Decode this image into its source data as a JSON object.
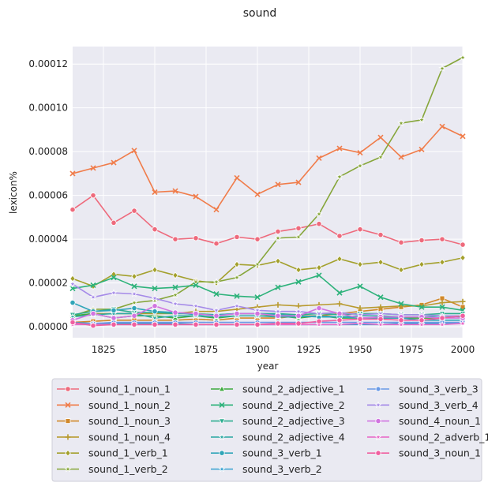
{
  "chart_data": {
    "type": "line",
    "title": "sound",
    "xlabel": "year",
    "ylabel": "lexicon%",
    "xlim": [
      1810,
      2000
    ],
    "ylim": [
      -5e-06,
      0.000128
    ],
    "xticks": [
      1825,
      1850,
      1875,
      1900,
      1925,
      1950,
      1975,
      2000
    ],
    "yticks": [
      0.0,
      2e-05,
      4e-05,
      6e-05,
      8e-05,
      0.0001,
      0.00012
    ],
    "ytick_labels": [
      "0.00000",
      "0.00002",
      "0.00004",
      "0.00006",
      "0.00008",
      "0.00010",
      "0.00012"
    ],
    "grid": true,
    "legend_position": "bottom",
    "x": [
      1810,
      1820,
      1830,
      1840,
      1850,
      1860,
      1870,
      1880,
      1890,
      1900,
      1910,
      1920,
      1930,
      1940,
      1950,
      1960,
      1970,
      1980,
      1990,
      2000
    ],
    "series": [
      {
        "name": "sound_1_noun_1",
        "color": "#ee6a7c",
        "marker": "circle",
        "values": [
          5.35e-05,
          6e-05,
          4.75e-05,
          5.3e-05,
          4.45e-05,
          4e-05,
          4.05e-05,
          3.8e-05,
          4.1e-05,
          4e-05,
          4.35e-05,
          4.5e-05,
          4.7e-05,
          4.15e-05,
          4.45e-05,
          4.2e-05,
          3.85e-05,
          3.95e-05,
          4e-05,
          3.75e-05
        ]
      },
      {
        "name": "sound_1_noun_2",
        "color": "#f07c4a",
        "marker": "x",
        "values": [
          7e-05,
          7.25e-05,
          7.5e-05,
          8.05e-05,
          6.15e-05,
          6.2e-05,
          5.95e-05,
          5.35e-05,
          6.8e-05,
          6.05e-05,
          6.5e-05,
          6.6e-05,
          7.7e-05,
          8.15e-05,
          7.95e-05,
          8.65e-05,
          7.75e-05,
          8.1e-05,
          9.15e-05,
          8.7e-05
        ]
      },
      {
        "name": "sound_1_noun_3",
        "color": "#d1882a",
        "marker": "square",
        "values": [
          2e-06,
          2.5e-06,
          3e-06,
          3e-06,
          3e-06,
          3e-06,
          3.5e-06,
          3e-06,
          4e-06,
          4e-06,
          4e-06,
          5e-06,
          5e-06,
          6e-06,
          7e-06,
          8e-06,
          9e-06,
          1e-05,
          1.3e-05,
          9e-06
        ]
      },
      {
        "name": "sound_1_noun_4",
        "color": "#b89a2e",
        "marker": "plus",
        "values": [
          5e-06,
          6e-06,
          6e-06,
          6e-06,
          6e-06,
          6e-06,
          7e-06,
          7e-06,
          8e-06,
          9e-06,
          1e-05,
          9.5e-06,
          1e-05,
          1.05e-05,
          8.5e-06,
          9e-06,
          9.5e-06,
          9.5e-06,
          1.1e-05,
          1.15e-05
        ]
      },
      {
        "name": "sound_1_verb_1",
        "color": "#a3a02d",
        "marker": "diamond",
        "values": [
          2.2e-05,
          1.85e-05,
          2.4e-05,
          2.3e-05,
          2.6e-05,
          2.35e-05,
          2.1e-05,
          2e-05,
          2.85e-05,
          2.8e-05,
          3e-05,
          2.6e-05,
          2.7e-05,
          3.1e-05,
          2.85e-05,
          2.95e-05,
          2.6e-05,
          2.85e-05,
          2.95e-05,
          3.15e-05
        ]
      },
      {
        "name": "sound_1_verb_2",
        "color": "#86a63a",
        "marker": "star",
        "values": [
          5e-06,
          8e-06,
          8e-06,
          1.1e-05,
          1.2e-05,
          1.45e-05,
          2.05e-05,
          2.05e-05,
          2.25e-05,
          2.85e-05,
          4.05e-05,
          4.1e-05,
          5.15e-05,
          6.85e-05,
          7.35e-05,
          7.75e-05,
          9.3e-05,
          9.45e-05,
          0.000118,
          0.000123
        ]
      },
      {
        "name": "sound_2_adjective_1",
        "color": "#3daa3e",
        "marker": "triangle",
        "values": [
          5e-06,
          6e-06,
          4e-06,
          5e-06,
          5e-06,
          4e-06,
          5e-06,
          4e-06,
          5e-06,
          5e-06,
          5e-06,
          4e-06,
          5e-06,
          4e-06,
          4e-06,
          4e-06,
          4e-06,
          4e-06,
          4e-06,
          5e-06
        ]
      },
      {
        "name": "sound_2_adjective_2",
        "color": "#2db27a",
        "marker": "x",
        "values": [
          1.75e-05,
          1.9e-05,
          2.25e-05,
          1.85e-05,
          1.75e-05,
          1.8e-05,
          1.9e-05,
          1.5e-05,
          1.4e-05,
          1.35e-05,
          1.8e-05,
          2.05e-05,
          2.35e-05,
          1.55e-05,
          1.85e-05,
          1.35e-05,
          1.05e-05,
          9e-06,
          9e-06,
          7.5e-06
        ]
      },
      {
        "name": "sound_2_adjective_3",
        "color": "#2eae90",
        "marker": "triangle-down",
        "values": [
          5.5e-06,
          7e-06,
          8e-06,
          6.5e-06,
          6.5e-06,
          6e-06,
          6e-06,
          5.5e-06,
          6e-06,
          6e-06,
          6e-06,
          5.5e-06,
          6e-06,
          5.5e-06,
          6e-06,
          6e-06,
          5.5e-06,
          5.5e-06,
          6e-06,
          6e-06
        ]
      },
      {
        "name": "sound_2_adjective_4",
        "color": "#30aaa5",
        "marker": "star",
        "values": [
          4.5e-06,
          5.5e-06,
          6e-06,
          6e-06,
          4e-06,
          5e-06,
          5e-06,
          4.5e-06,
          5e-06,
          5e-06,
          4.5e-06,
          4.5e-06,
          5e-06,
          4.5e-06,
          5e-06,
          5e-06,
          4.5e-06,
          4.5e-06,
          5e-06,
          4.5e-06
        ]
      },
      {
        "name": "sound_3_verb_1",
        "color": "#30a5b8",
        "marker": "circle",
        "values": [
          1.1e-05,
          7e-06,
          7.5e-06,
          8.5e-06,
          7e-06,
          6.5e-06,
          5.5e-06,
          5.5e-06,
          6e-06,
          6e-06,
          5.5e-06,
          5e-06,
          4.5e-06,
          4.5e-06,
          4e-06,
          4e-06,
          4e-06,
          3e-06,
          3e-06,
          3e-06
        ]
      },
      {
        "name": "sound_3_verb_2",
        "color": "#36a0d0",
        "marker": "star",
        "values": [
          2e-06,
          1.5e-06,
          1.5e-06,
          1.5e-06,
          1.5e-06,
          1.5e-06,
          1e-06,
          1e-06,
          1e-06,
          1e-06,
          1e-06,
          1e-06,
          1e-06,
          1e-06,
          1e-06,
          1e-06,
          1.5e-06,
          1.5e-06,
          1.5e-06,
          1.5e-06
        ]
      },
      {
        "name": "sound_3_verb_3",
        "color": "#6a9ae6",
        "marker": "hexagon",
        "values": [
          1.5e-06,
          1.5e-06,
          2e-06,
          2e-06,
          2e-06,
          2e-06,
          2e-06,
          2e-06,
          2e-06,
          2e-06,
          2e-06,
          2e-06,
          2e-06,
          2e-06,
          2e-06,
          2e-06,
          2e-06,
          2e-06,
          2e-06,
          2e-06
        ]
      },
      {
        "name": "sound_3_verb_4",
        "color": "#a58ae8",
        "marker": "star",
        "values": [
          1.95e-05,
          1.35e-05,
          1.55e-05,
          1.5e-05,
          1.3e-05,
          1.05e-05,
          9.5e-06,
          7.5e-06,
          9.5e-06,
          7.5e-06,
          7e-06,
          7e-06,
          6e-06,
          6.5e-06,
          5.5e-06,
          6e-06,
          5.5e-06,
          5.5e-06,
          5e-06,
          5e-06
        ]
      },
      {
        "name": "sound_4_noun_1",
        "color": "#d174e0",
        "marker": "circle",
        "values": [
          3e-06,
          6e-06,
          4e-06,
          5e-06,
          9.5e-06,
          6.5e-06,
          6e-06,
          5e-06,
          6e-06,
          6e-06,
          5e-06,
          5e-06,
          8.5e-06,
          6e-06,
          4e-06,
          4.5e-06,
          4.5e-06,
          4.5e-06,
          4e-06,
          4e-06
        ]
      },
      {
        "name": "sound_2_adverb_1",
        "color": "#e86ac8",
        "marker": "star",
        "values": [
          1e-06,
          1e-06,
          1e-06,
          1e-06,
          1e-06,
          1e-06,
          1e-06,
          1e-06,
          1e-06,
          1e-06,
          1e-06,
          1e-06,
          1e-06,
          1e-06,
          1.5e-06,
          1e-06,
          1e-06,
          1e-06,
          1e-06,
          1.5e-06
        ]
      },
      {
        "name": "sound_3_noun_1",
        "color": "#f05fa0",
        "marker": "circle",
        "values": [
          2e-06,
          5e-07,
          1e-06,
          1e-06,
          1e-06,
          1e-06,
          1e-06,
          1e-06,
          1e-06,
          1e-06,
          1.5e-06,
          1.5e-06,
          2.5e-06,
          3e-06,
          3.5e-06,
          3.5e-06,
          3e-06,
          3e-06,
          4e-06,
          5e-06
        ]
      }
    ]
  }
}
